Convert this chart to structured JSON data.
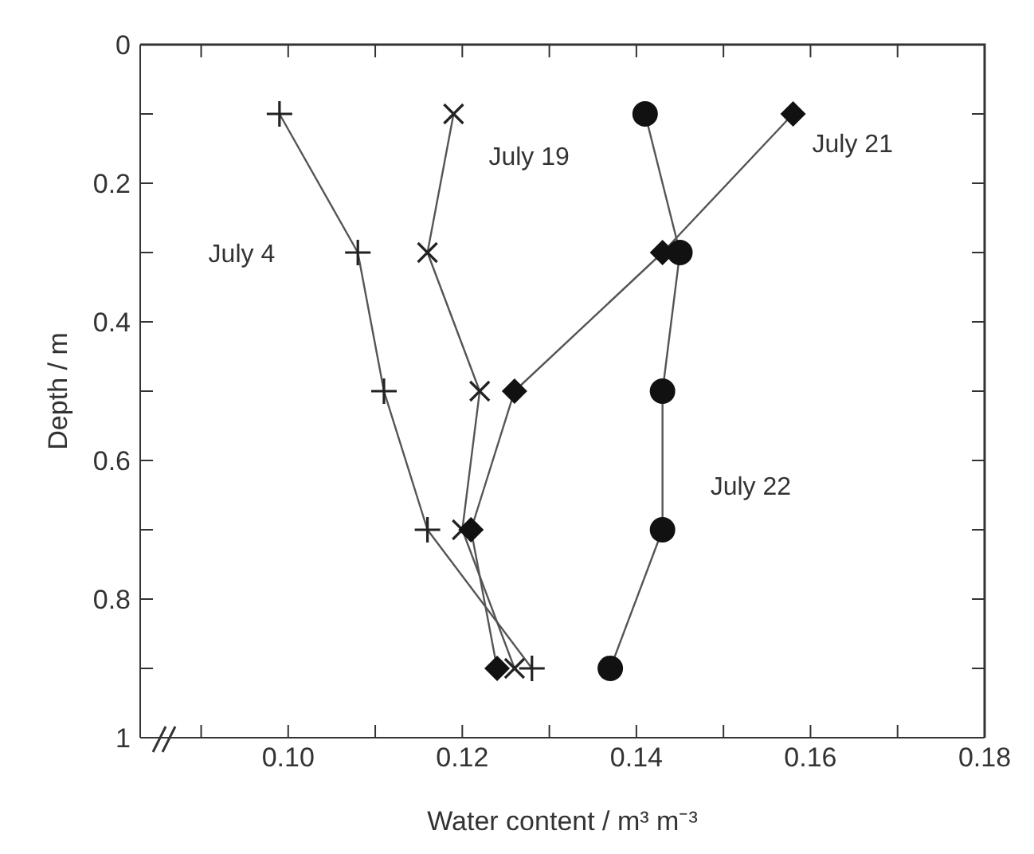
{
  "chart_data": {
    "type": "line",
    "xlabel": "Water content / m³ m⁻³",
    "ylabel": "Depth / m",
    "xlim": [
      0.083,
      0.18
    ],
    "xticks": [
      {
        "value": 0.09,
        "label": null
      },
      {
        "value": 0.1,
        "label": "0.10"
      },
      {
        "value": 0.11,
        "label": null
      },
      {
        "value": 0.12,
        "label": "0.12"
      },
      {
        "value": 0.13,
        "label": null
      },
      {
        "value": 0.14,
        "label": "0.14"
      },
      {
        "value": 0.15,
        "label": null
      },
      {
        "value": 0.16,
        "label": "0.16"
      },
      {
        "value": 0.17,
        "label": null
      },
      {
        "value": 0.18,
        "label": "0.18"
      }
    ],
    "ylim": [
      1,
      0
    ],
    "yticks": [
      0,
      {
        "value": 0.1,
        "label": null
      },
      0.2,
      {
        "value": 0.3,
        "label": null
      },
      0.4,
      {
        "value": 0.5,
        "label": null
      },
      0.6,
      {
        "value": 0.7,
        "label": null
      },
      0.8,
      {
        "value": 0.9,
        "label": null
      },
      1
    ],
    "grid": false,
    "legend": false,
    "series": [
      {
        "name": "July 4",
        "color": "#222222",
        "marker": "plus",
        "x": [
          0.099,
          0.108,
          0.111,
          0.116,
          0.128
        ],
        "values": [
          0.1,
          0.3,
          0.5,
          0.7,
          0.9
        ]
      },
      {
        "name": "July 19",
        "color": "#222222",
        "marker": "cross",
        "x": [
          0.119,
          0.116,
          0.122,
          0.12,
          0.126
        ],
        "values": [
          0.1,
          0.3,
          0.5,
          0.7,
          0.9
        ]
      },
      {
        "name": "July 21",
        "color": "#111111",
        "marker": "diamond",
        "x": [
          0.158,
          0.143,
          0.126,
          0.121,
          0.124
        ],
        "values": [
          0.1,
          0.3,
          0.5,
          0.7,
          0.9
        ]
      },
      {
        "name": "July 22",
        "color": "#111111",
        "marker": "circle",
        "x": [
          0.141,
          0.145,
          0.143,
          0.143,
          0.137
        ],
        "values": [
          0.1,
          0.3,
          0.5,
          0.7,
          0.9
        ]
      }
    ]
  }
}
